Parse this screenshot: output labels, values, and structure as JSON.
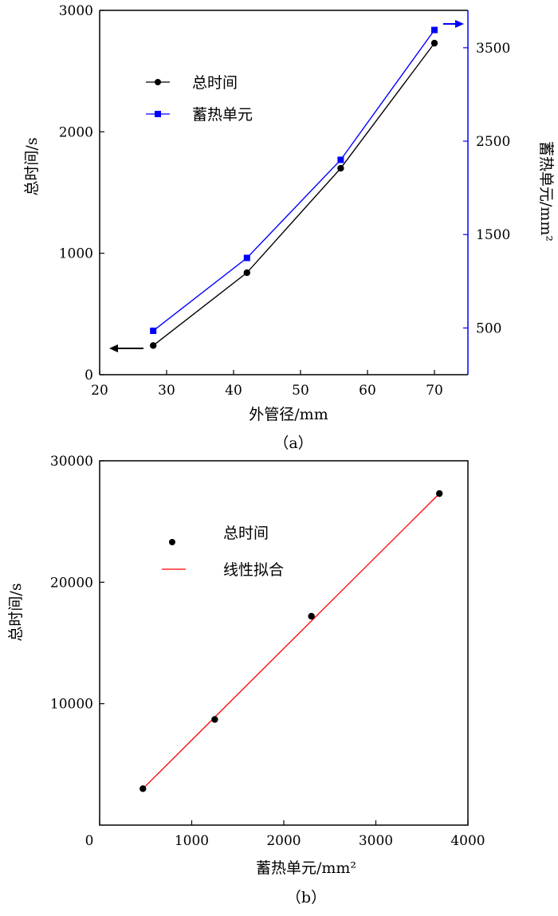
{
  "chart_data": [
    {
      "type": "line",
      "caption": "（a）",
      "xlabel": "外管径/mm",
      "ylabel": "总时间/s",
      "y2label": "蓄热单元/mm²",
      "xlim": [
        20,
        75
      ],
      "ylim": [
        0,
        3000
      ],
      "y2lim": [
        0,
        3900
      ],
      "xticks": [
        20,
        30,
        40,
        50,
        60,
        70
      ],
      "yticks": [
        0,
        1000,
        2000,
        3000
      ],
      "y2ticks": [
        500,
        1500,
        2500,
        3500
      ],
      "series": [
        {
          "name": "总时间",
          "axis": "left",
          "color": "#000000",
          "marker": "circle",
          "x": [
            28,
            42,
            56,
            70
          ],
          "values": [
            240,
            840,
            1700,
            2730
          ]
        },
        {
          "name": "蓄热单元",
          "axis": "right",
          "color": "#0000ff",
          "marker": "square",
          "x": [
            28,
            42,
            56,
            70
          ],
          "values": [
            470,
            1250,
            2300,
            3690
          ]
        }
      ],
      "legend_position": "upper-left",
      "arrows": [
        {
          "direction": "left",
          "color": "#000000",
          "axis": "left"
        },
        {
          "direction": "right",
          "color": "#0000ff",
          "axis": "right"
        }
      ]
    },
    {
      "type": "scatter",
      "caption": "（b）",
      "xlabel": "蓄热单元/mm²",
      "ylabel": "总时间/s",
      "xlim": [
        0,
        4000
      ],
      "ylim": [
        0,
        30000
      ],
      "xticks": [
        0,
        1000,
        2000,
        3000,
        4000
      ],
      "yticks": [
        10000,
        20000,
        30000
      ],
      "series": [
        {
          "name": "总时间",
          "type": "scatter",
          "color": "#000000",
          "x": [
            470,
            1250,
            2300,
            3690
          ],
          "values": [
            3000,
            8700,
            17200,
            27300
          ]
        },
        {
          "name": "线性拟合",
          "type": "line",
          "color": "#ff0000",
          "x": [
            470,
            3690
          ],
          "values": [
            3000,
            27300
          ]
        }
      ],
      "legend_position": "upper-left"
    }
  ]
}
